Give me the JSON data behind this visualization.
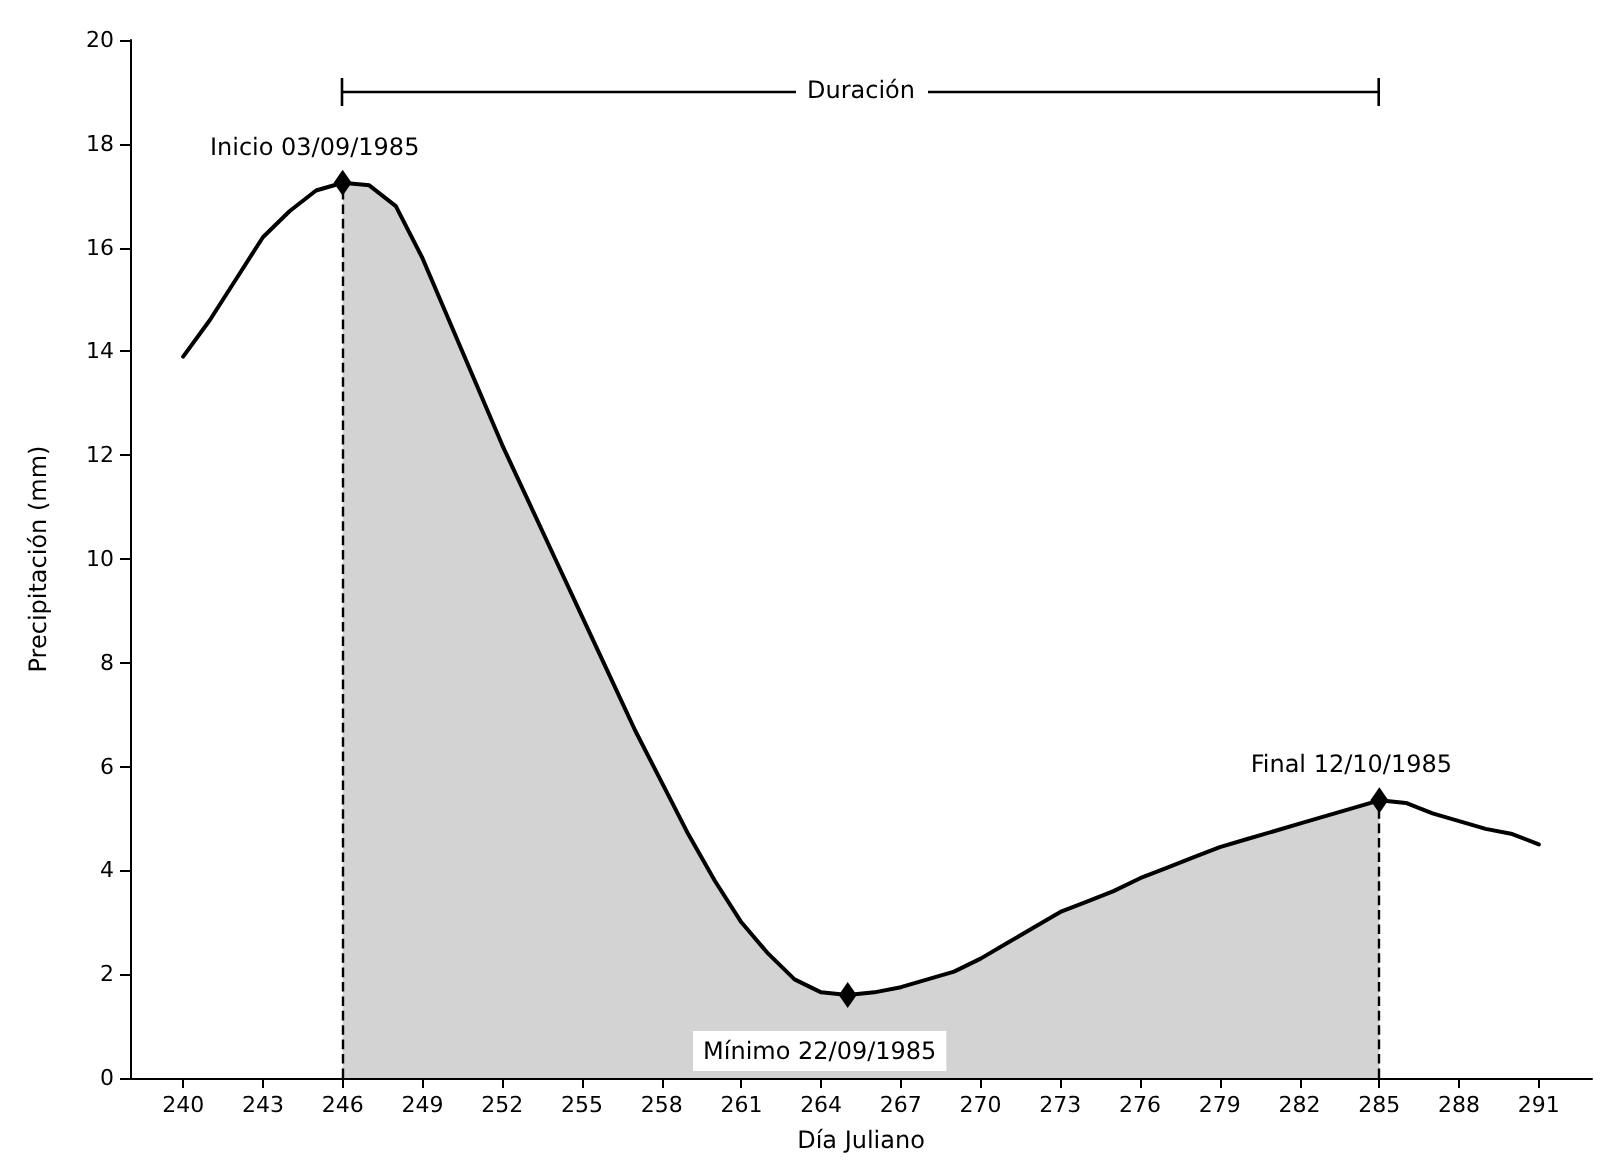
{
  "chart_data": {
    "type": "line",
    "xlabel": "Día Juliano",
    "ylabel": "Precipitación (mm)",
    "xlim": [
      238,
      293
    ],
    "xticks": [
      240,
      243,
      246,
      249,
      252,
      255,
      258,
      261,
      264,
      267,
      270,
      273,
      276,
      279,
      282,
      285,
      288,
      291
    ],
    "ylim": [
      0,
      20
    ],
    "yticks": [
      0,
      2,
      4,
      6,
      8,
      10,
      12,
      14,
      16,
      18,
      20
    ],
    "grid": false,
    "series": [
      {
        "type": "area",
        "color": "#d3d3d3",
        "marker": "none",
        "x": [
          246,
          247,
          248,
          249,
          250,
          251,
          252,
          253,
          254,
          255,
          256,
          257,
          258,
          259,
          260,
          261,
          262,
          263,
          264,
          265,
          266,
          267,
          268,
          269,
          270,
          271,
          272,
          273,
          274,
          275,
          276,
          277,
          278,
          279,
          280,
          281,
          282,
          283,
          284,
          285
        ],
        "values": [
          17.25,
          17.2,
          16.8,
          15.8,
          14.6,
          13.4,
          12.2,
          11.1,
          10.0,
          8.9,
          7.8,
          6.7,
          5.7,
          4.7,
          3.8,
          3.0,
          2.4,
          1.9,
          1.65,
          1.6,
          1.65,
          1.75,
          1.9,
          2.05,
          2.3,
          2.6,
          2.9,
          3.2,
          3.4,
          3.6,
          3.85,
          4.05,
          4.25,
          4.45,
          4.6,
          4.75,
          4.9,
          5.05,
          5.2,
          5.35
        ]
      },
      {
        "color": "#000000",
        "marker": "none",
        "x": [
          240,
          241,
          242,
          243,
          244,
          245,
          246,
          247,
          248,
          249,
          250,
          251,
          252,
          253,
          254,
          255,
          256,
          257,
          258,
          259,
          260,
          261,
          262,
          263,
          264,
          265,
          266,
          267,
          268,
          269,
          270,
          271,
          272,
          273,
          274,
          275,
          276,
          277,
          278,
          279,
          280,
          281,
          282,
          283,
          284,
          285,
          286,
          287,
          288,
          289,
          290,
          291
        ],
        "values": [
          13.9,
          14.6,
          15.4,
          16.2,
          16.7,
          17.1,
          17.25,
          17.2,
          16.8,
          15.8,
          14.6,
          13.4,
          12.2,
          11.1,
          10.0,
          8.9,
          7.8,
          6.7,
          5.7,
          4.7,
          3.8,
          3.0,
          2.4,
          1.9,
          1.65,
          1.6,
          1.65,
          1.75,
          1.9,
          2.05,
          2.3,
          2.6,
          2.9,
          3.2,
          3.4,
          3.6,
          3.85,
          4.05,
          4.25,
          4.45,
          4.6,
          4.75,
          4.9,
          5.05,
          5.2,
          5.35,
          5.3,
          5.1,
          4.95,
          4.8,
          4.7,
          4.5
        ]
      },
      {
        "type": "scatter",
        "color": "#000000",
        "marker": "diamond",
        "x": [
          246,
          265,
          285
        ],
        "values": [
          17.25,
          1.6,
          5.35
        ]
      }
    ],
    "ref_lines": [
      {
        "axis": "x",
        "value": 246,
        "color": "#000000",
        "line_style": "dashed"
      },
      {
        "axis": "x",
        "value": 285,
        "color": "#000000",
        "line_style": "dashed"
      }
    ],
    "annotations": [
      {
        "text": "Inicio 03/09/1985",
        "x": 246,
        "y": 17.25
      },
      {
        "text": "Mínimo 22/09/1985",
        "x": 265,
        "y": 1.6
      },
      {
        "text": "Final 12/10/1985",
        "x": 285,
        "y": 5.35
      },
      "Duración"
    ]
  }
}
